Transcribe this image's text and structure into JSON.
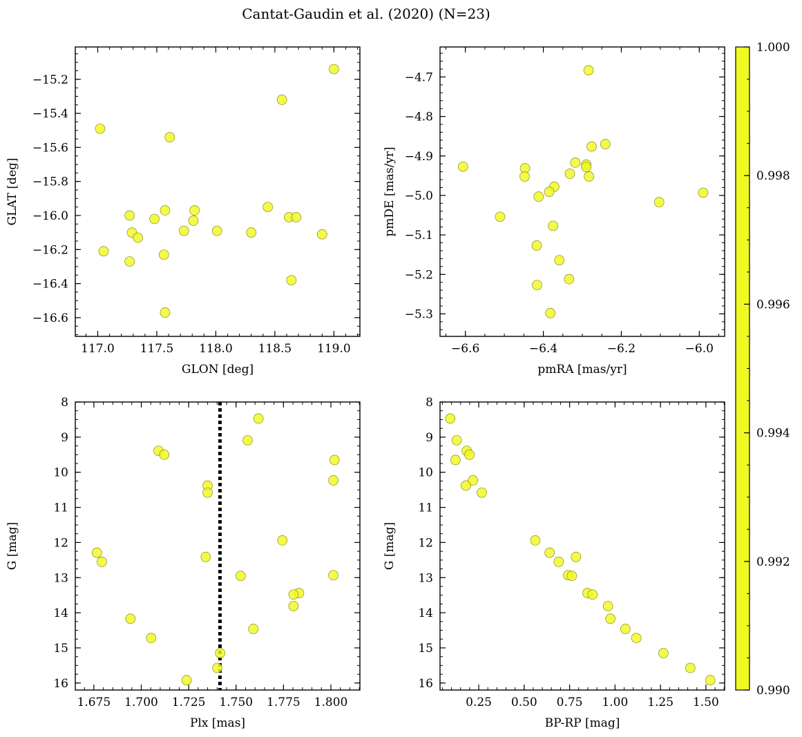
{
  "title": "Cantat-Gaudin et al. (2020) (N=23)",
  "colors": {
    "point_fill": "#f0f921",
    "point_edge": "#8a8a20",
    "vline": "#000000"
  },
  "chart_data": [
    {
      "type": "scatter",
      "xlabel": "GLON [deg]",
      "ylabel": "GLAT [deg]",
      "xlim": [
        116.81,
        119.22
      ],
      "ylim": [
        -16.71,
        -15.01
      ],
      "y_inverted": false,
      "xticks": [
        117.0,
        117.5,
        118.0,
        118.5,
        119.0
      ],
      "xtick_labels": [
        "117.0",
        "117.5",
        "118.0",
        "118.5",
        "119.0"
      ],
      "yticks": [
        -15.2,
        -15.4,
        -15.6,
        -15.8,
        -16.0,
        -16.2,
        -16.4,
        -16.6
      ],
      "ytick_labels": [
        "−15.2",
        "−15.4",
        "−15.6",
        "−15.8",
        "−16.0",
        "−16.2",
        "−16.4",
        "−16.6"
      ],
      "x_minor_step": 0.1,
      "y_minor_step": 0.05,
      "points": [
        [
          119.0,
          -15.14
        ],
        [
          118.56,
          -15.32
        ],
        [
          117.02,
          -15.49
        ],
        [
          117.61,
          -15.54
        ],
        [
          118.44,
          -15.95
        ],
        [
          117.57,
          -15.97
        ],
        [
          117.82,
          -15.97
        ],
        [
          117.27,
          -16.0
        ],
        [
          118.62,
          -16.01
        ],
        [
          118.68,
          -16.01
        ],
        [
          117.48,
          -16.02
        ],
        [
          117.81,
          -16.03
        ],
        [
          117.73,
          -16.09
        ],
        [
          118.01,
          -16.09
        ],
        [
          118.3,
          -16.1
        ],
        [
          117.29,
          -16.1
        ],
        [
          118.9,
          -16.11
        ],
        [
          117.34,
          -16.13
        ],
        [
          117.05,
          -16.21
        ],
        [
          117.56,
          -16.23
        ],
        [
          117.27,
          -16.27
        ],
        [
          118.64,
          -16.38
        ],
        [
          117.57,
          -16.57
        ]
      ],
      "color_values": [
        1,
        1,
        1,
        1,
        1,
        1,
        1,
        1,
        1,
        1,
        1,
        1,
        1,
        1,
        1,
        1,
        1,
        1,
        1,
        1,
        1,
        1,
        1
      ]
    },
    {
      "type": "scatter",
      "xlabel": "pmRA [mas/yr]",
      "ylabel": "pmDE [mas/yr]",
      "xlim": [
        -6.665,
        -5.935
      ],
      "ylim": [
        -5.357,
        -4.624
      ],
      "y_inverted": false,
      "xticks": [
        -6.6,
        -6.4,
        -6.2,
        -6.0
      ],
      "xtick_labels": [
        "−6.6",
        "−6.4",
        "−6.2",
        "−6.0"
      ],
      "yticks": [
        -4.7,
        -4.8,
        -4.9,
        -5.0,
        -5.1,
        -5.2,
        -5.3
      ],
      "ytick_labels": [
        "−4.7",
        "−4.8",
        "−4.9",
        "−5.0",
        "−5.1",
        "−5.2",
        "−5.3"
      ],
      "x_minor_step": 0.05,
      "y_minor_step": 0.02,
      "points": [
        [
          -6.284,
          -4.683
        ],
        [
          -6.241,
          -4.87
        ],
        [
          -6.276,
          -4.876
        ],
        [
          -6.318,
          -4.917
        ],
        [
          -6.29,
          -4.922
        ],
        [
          -6.29,
          -4.928
        ],
        [
          -6.606,
          -4.927
        ],
        [
          -6.447,
          -4.931
        ],
        [
          -6.332,
          -4.945
        ],
        [
          -6.448,
          -4.952
        ],
        [
          -6.283,
          -4.952
        ],
        [
          -6.372,
          -4.978
        ],
        [
          -6.385,
          -4.991
        ],
        [
          -5.99,
          -4.993
        ],
        [
          -6.412,
          -5.003
        ],
        [
          -6.103,
          -5.017
        ],
        [
          -6.511,
          -5.054
        ],
        [
          -6.375,
          -5.077
        ],
        [
          -6.417,
          -5.127
        ],
        [
          -6.359,
          -5.164
        ],
        [
          -6.334,
          -5.212
        ],
        [
          -6.416,
          -5.227
        ],
        [
          -6.382,
          -5.298
        ]
      ],
      "color_values": [
        1,
        1,
        1,
        1,
        1,
        1,
        1,
        1,
        1,
        1,
        1,
        1,
        1,
        1,
        1,
        1,
        1,
        1,
        1,
        1,
        1,
        1,
        1
      ]
    },
    {
      "type": "scatter",
      "xlabel": "Plx [mas]",
      "ylabel": "G [mag]",
      "xlim": [
        1.6652,
        1.8153
      ],
      "ylim": [
        16.2,
        8.0
      ],
      "y_inverted": true,
      "xticks": [
        1.675,
        1.7,
        1.725,
        1.75,
        1.775,
        1.8
      ],
      "xtick_labels": [
        "1.675",
        "1.700",
        "1.725",
        "1.750",
        "1.775",
        "1.800"
      ],
      "yticks": [
        8,
        9,
        10,
        11,
        12,
        13,
        14,
        15,
        16
      ],
      "ytick_labels": [
        "8",
        "9",
        "10",
        "11",
        "12",
        "13",
        "14",
        "15",
        "16"
      ],
      "x_minor_step": 0.005,
      "y_minor_step": 0.25,
      "vline_x": 1.7415,
      "points": [
        [
          1.7618,
          8.47
        ],
        [
          1.7561,
          9.09
        ],
        [
          1.7091,
          9.39
        ],
        [
          1.7121,
          9.5
        ],
        [
          1.8019,
          9.65
        ],
        [
          1.8013,
          10.23
        ],
        [
          1.735,
          10.38
        ],
        [
          1.735,
          10.58
        ],
        [
          1.7744,
          11.94
        ],
        [
          1.6766,
          12.29
        ],
        [
          1.734,
          12.41
        ],
        [
          1.6792,
          12.55
        ],
        [
          1.8013,
          12.93
        ],
        [
          1.7524,
          12.95
        ],
        [
          1.7832,
          13.44
        ],
        [
          1.7803,
          13.48
        ],
        [
          1.7803,
          13.81
        ],
        [
          1.6943,
          14.17
        ],
        [
          1.7591,
          14.46
        ],
        [
          1.7052,
          14.72
        ],
        [
          1.7416,
          15.15
        ],
        [
          1.7401,
          15.57
        ],
        [
          1.7239,
          15.92
        ]
      ],
      "color_values": [
        1,
        1,
        1,
        1,
        1,
        1,
        1,
        1,
        1,
        1,
        1,
        1,
        1,
        1,
        1,
        1,
        1,
        1,
        1,
        1,
        1,
        1,
        1
      ]
    },
    {
      "type": "scatter",
      "xlabel": "BP-RP [mag]",
      "ylabel": "G [mag]",
      "xlim": [
        0.037,
        1.603
      ],
      "ylim": [
        16.2,
        8.0
      ],
      "y_inverted": true,
      "xticks": [
        0.25,
        0.5,
        0.75,
        1.0,
        1.25,
        1.5
      ],
      "xtick_labels": [
        "0.25",
        "0.50",
        "0.75",
        "1.00",
        "1.25",
        "1.50"
      ],
      "yticks": [
        8,
        9,
        10,
        11,
        12,
        13,
        14,
        15,
        16
      ],
      "ytick_labels": [
        "8",
        "9",
        "10",
        "11",
        "12",
        "13",
        "14",
        "15",
        "16"
      ],
      "x_minor_step": 0.05,
      "y_minor_step": 0.25,
      "points": [
        [
          0.093,
          8.47
        ],
        [
          0.129,
          9.09
        ],
        [
          0.184,
          9.39
        ],
        [
          0.199,
          9.5
        ],
        [
          0.122,
          9.65
        ],
        [
          0.218,
          10.23
        ],
        [
          0.179,
          10.38
        ],
        [
          0.267,
          10.58
        ],
        [
          0.561,
          11.94
        ],
        [
          0.64,
          12.29
        ],
        [
          0.785,
          12.41
        ],
        [
          0.69,
          12.55
        ],
        [
          0.742,
          12.93
        ],
        [
          0.762,
          12.95
        ],
        [
          0.848,
          13.44
        ],
        [
          0.876,
          13.48
        ],
        [
          0.961,
          13.81
        ],
        [
          0.974,
          14.17
        ],
        [
          1.057,
          14.46
        ],
        [
          1.117,
          14.72
        ],
        [
          1.266,
          15.15
        ],
        [
          1.414,
          15.57
        ],
        [
          1.524,
          15.92
        ]
      ],
      "color_values": [
        1,
        1,
        1,
        1,
        1,
        1,
        1,
        1,
        1,
        1,
        1,
        1,
        1,
        1,
        1,
        1,
        1,
        1,
        1,
        1,
        1,
        1,
        1
      ]
    }
  ],
  "colorbar": {
    "colormap": "plasma",
    "min": 0.99,
    "max": 1.0,
    "ticks": [
      1.0,
      0.998,
      0.996,
      0.994,
      0.992,
      0.99
    ],
    "tick_labels": [
      "1.000",
      "0.998",
      "0.996",
      "0.994",
      "0.992",
      "0.990"
    ],
    "minor_step": 0.0005,
    "gradient_stops": [
      "#f0f921",
      "#fdb42f",
      "#ed7953",
      "#cc4778",
      "#9c179e",
      "#5c01a6",
      "#3a2a8f"
    ]
  }
}
